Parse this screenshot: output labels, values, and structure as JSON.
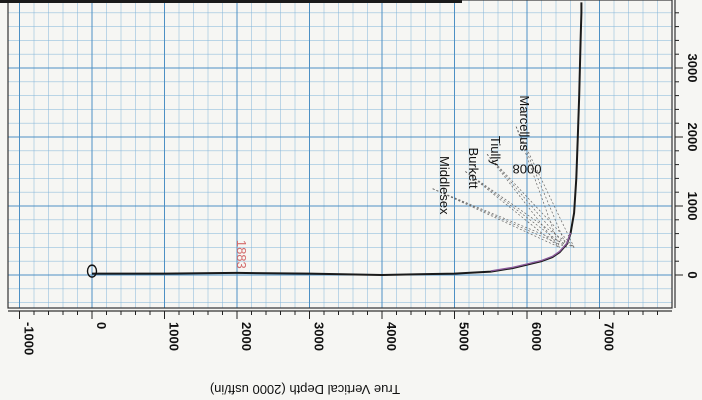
{
  "chart_data": {
    "type": "line",
    "orientation": "rotated-180",
    "xlabel": "True Vertical Depth (2000 usft/in)",
    "xlim": [
      -1100,
      7900
    ],
    "ylim": [
      -500,
      3950
    ],
    "xticks": [
      -1000,
      0,
      1000,
      2000,
      3000,
      4000,
      5000,
      6000,
      7000
    ],
    "yticks": [
      0,
      1000,
      2000,
      3000
    ],
    "xtick_labels": [
      "-1000",
      "0",
      "1000",
      "2000",
      "3000",
      "4000",
      "5000",
      "6000",
      "7000"
    ],
    "ytick_labels": [
      "0",
      "1000",
      "2000",
      "3000"
    ],
    "grid": true,
    "series": [
      {
        "color": "#1a1a1a",
        "x": [
          0,
          500,
          1000,
          2000,
          3000,
          4000,
          4500,
          5000,
          5500,
          5800,
          6000,
          6200,
          6350,
          6450,
          6550,
          6600,
          6650,
          6680,
          6700,
          6720,
          6730,
          6740,
          6750,
          6750
        ],
        "y": [
          20,
          20,
          20,
          30,
          20,
          0,
          10,
          20,
          50,
          100,
          150,
          200,
          260,
          330,
          450,
          600,
          900,
          1400,
          2000,
          2600,
          3000,
          3400,
          3800,
          3950
        ]
      },
      {
        "color": "#8b5a9a",
        "x": [
          5500,
          5800,
          6000,
          6200,
          6350,
          6450,
          6550,
          6600
        ],
        "y": [
          60,
          110,
          160,
          210,
          270,
          340,
          460,
          610
        ]
      }
    ],
    "annotations": [
      {
        "text": "0",
        "x": 0,
        "y": 230,
        "kind": "start-marker"
      },
      {
        "text": "1883",
        "x": 2000,
        "y": 300,
        "kind": "depth-label"
      },
      {
        "text": "Middlesex",
        "x": 4800,
        "y": 1300,
        "kind": "formation"
      },
      {
        "text": "Burkett",
        "x": 5200,
        "y": 1550,
        "kind": "formation"
      },
      {
        "text": "Tiully",
        "x": 5500,
        "y": 1800,
        "kind": "formation"
      },
      {
        "text": "Marcellus",
        "x": 5900,
        "y": 2200,
        "kind": "formation"
      },
      {
        "text": "0008",
        "x": 6000,
        "y": 1600,
        "kind": "depth-label"
      }
    ],
    "colors": {
      "grid": "#7fb3d9",
      "frame": "#333333",
      "md_label": "#d36b6b"
    }
  }
}
